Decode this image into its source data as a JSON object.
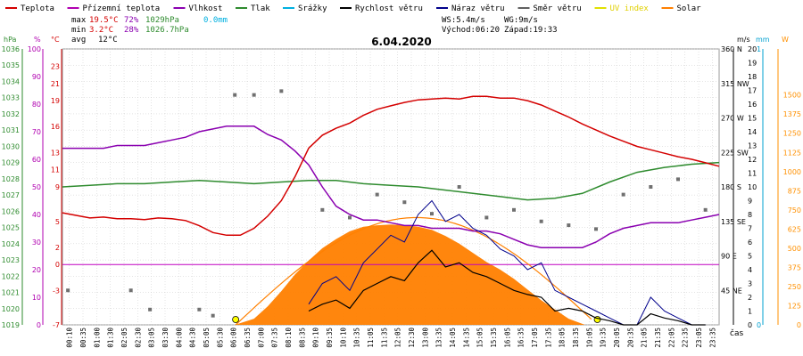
{
  "legend": [
    {
      "label": "Teplota",
      "color": "#d40000"
    },
    {
      "label": "Přízemní teplota",
      "color": "#b000b0"
    },
    {
      "label": "Vlhkost",
      "color": "#8a00b0"
    },
    {
      "label": "Tlak",
      "color": "#2e8b2e"
    },
    {
      "label": "Srážky",
      "color": "#00b0e0"
    },
    {
      "label": "Rychlost větru",
      "color": "#000000"
    },
    {
      "label": "Náraz větru",
      "color": "#00008b"
    },
    {
      "label": "Směr větru",
      "color": "#606060"
    },
    {
      "label": "UV index",
      "color": "#e0e000"
    },
    {
      "label": "Solar",
      "color": "#ff8000"
    }
  ],
  "stats": {
    "max": {
      "label": "max",
      "temp": "19.5°C",
      "hum": "72%",
      "press": "1029hPa",
      "rain": "0.0mm"
    },
    "min": {
      "label": "min",
      "temp": "3.2°C",
      "hum": "28%",
      "press": "1026.7hPa"
    },
    "avg": {
      "label": "avg",
      "temp": "12°C"
    }
  },
  "wind_info": {
    "ws": "WS:5.4m/s",
    "wg": "WG:9m/s",
    "sunrise": "Východ:06:20",
    "sunset": "Západ:19:33"
  },
  "date": "6.04.2020",
  "axis_headers": {
    "left": [
      "hPa",
      "%",
      "°C"
    ],
    "right": [
      "m/s",
      "mm",
      "W"
    ]
  },
  "x_label": "čas",
  "colors": {
    "temperature": "#d40000",
    "humidity": "#8a00b0",
    "pressure": "#2e8b2e",
    "wind_speed": "#000000",
    "wind_gust": "#00008b",
    "wind_dir": "#707070",
    "solar": "#ff8000",
    "ground_zero": "#c000c0",
    "pressure_axis": "#2e8b2e",
    "humidity_axis": "#b000b0",
    "temp_axis": "#d40000",
    "rain_axis": "#00a0d0",
    "solar_axis": "#ff9000",
    "grid": "#c8c8c8"
  },
  "chart_data": {
    "type": "line",
    "title": "6.04.2020",
    "x_ticks": [
      "00:10",
      "00:35",
      "01:00",
      "01:30",
      "02:05",
      "02:30",
      "03:05",
      "03:30",
      "04:00",
      "04:30",
      "05:05",
      "05:30",
      "06:00",
      "06:35",
      "07:00",
      "07:35",
      "08:10",
      "08:35",
      "09:10",
      "09:35",
      "10:10",
      "10:35",
      "11:05",
      "11:35",
      "12:05",
      "12:30",
      "13:00",
      "13:35",
      "14:05",
      "14:35",
      "15:05",
      "15:35",
      "16:05",
      "16:35",
      "17:05",
      "17:35",
      "18:05",
      "18:35",
      "19:05",
      "19:35",
      "20:05",
      "20:35",
      "21:05",
      "21:35",
      "22:05",
      "22:35",
      "23:05",
      "23:35"
    ],
    "axes": {
      "pressure_hpa": {
        "ticks": [
          "1019",
          "1020",
          "1021",
          "1022",
          "1023",
          "1024",
          "1025",
          "1026",
          "1027",
          "1028",
          "1029",
          "1030",
          "1031",
          "1032",
          "1033",
          "1034",
          "1035",
          "1036"
        ],
        "range": [
          1019,
          1036
        ]
      },
      "humidity_pct": {
        "ticks": [
          "0",
          "10",
          "20",
          "30",
          "40",
          "50",
          "60",
          "70",
          "80",
          "90",
          "100"
        ],
        "range": [
          0,
          100
        ]
      },
      "temp_c": {
        "ticks": [
          "-7",
          "-3",
          "0",
          "2",
          "5",
          "9",
          "11",
          "13",
          "16",
          "19",
          "21",
          "23"
        ],
        "range": [
          -7,
          25
        ]
      },
      "wind_dir": {
        "ticks": [
          "360 N",
          "315 NW",
          "270 W",
          "225 SW",
          "180 S",
          "135 SE",
          "90 E",
          "45 NE"
        ],
        "range": [
          0,
          360
        ]
      },
      "wind_ms": {
        "ticks": [
          "0",
          "1",
          "2",
          "3",
          "4",
          "5",
          "6",
          "7",
          "8",
          "9",
          "10",
          "11",
          "12",
          "13",
          "14",
          "15",
          "16",
          "17",
          "18",
          "19",
          "20"
        ],
        "range": [
          0,
          20
        ]
      },
      "rain_mm": {
        "ticks": [
          "0",
          "1"
        ],
        "range": [
          0,
          1
        ]
      },
      "solar_w": {
        "ticks": [
          "0",
          "125",
          "250",
          "375",
          "500",
          "625",
          "750",
          "875",
          "1000",
          "1125",
          "1250",
          "1375",
          "1500"
        ],
        "range": [
          0,
          1800
        ]
      }
    },
    "series": [
      {
        "name": "Teplota",
        "unit": "°C",
        "x": [
          0,
          0.5,
          1,
          1.5,
          2,
          2.5,
          3,
          3.5,
          4,
          4.5,
          5,
          5.5,
          6,
          6.5,
          7,
          7.5,
          8,
          8.5,
          9,
          9.5,
          10,
          10.5,
          11,
          11.5,
          12,
          12.5,
          13,
          13.5,
          14,
          14.5,
          15,
          15.5,
          16,
          16.5,
          17,
          17.5,
          18,
          18.5,
          19,
          19.5,
          20,
          20.5,
          21,
          21.5,
          22,
          22.5,
          23,
          23.5,
          24
        ],
        "values": [
          6.0,
          5.7,
          5.4,
          5.5,
          5.3,
          5.3,
          5.2,
          5.4,
          5.3,
          5.1,
          4.5,
          3.7,
          3.4,
          3.4,
          4.2,
          5.6,
          7.4,
          10.2,
          13.5,
          15.0,
          15.8,
          16.4,
          17.3,
          18.0,
          18.4,
          18.8,
          19.1,
          19.2,
          19.3,
          19.2,
          19.5,
          19.5,
          19.3,
          19.3,
          19.0,
          18.5,
          17.8,
          17.1,
          16.3,
          15.6,
          14.9,
          14.3,
          13.7,
          13.3,
          12.9,
          12.5,
          12.2,
          11.8,
          11.4
        ]
      },
      {
        "name": "Vlhkost",
        "unit": "%",
        "x": [
          0,
          0.5,
          1,
          1.5,
          2,
          2.5,
          3,
          3.5,
          4,
          4.5,
          5,
          5.5,
          6,
          6.5,
          7,
          7.5,
          8,
          8.5,
          9,
          9.5,
          10,
          10.5,
          11,
          11.5,
          12,
          12.5,
          13,
          13.5,
          14,
          14.5,
          15,
          15.5,
          16,
          16.5,
          17,
          17.5,
          18,
          18.5,
          19,
          19.5,
          20,
          20.5,
          21,
          21.5,
          22,
          22.5,
          23,
          23.5,
          24
        ],
        "values": [
          64,
          64,
          64,
          64,
          65,
          65,
          65,
          66,
          67,
          68,
          70,
          71,
          72,
          72,
          72,
          69,
          67,
          63,
          58,
          50,
          43,
          40,
          38,
          38,
          37,
          36,
          36,
          35,
          35,
          35,
          34,
          34,
          33,
          31,
          29,
          28,
          28,
          28,
          28,
          30,
          33,
          35,
          36,
          37,
          37,
          37,
          38,
          39,
          40
        ]
      },
      {
        "name": "Tlak",
        "unit": "hPa",
        "x": [
          0,
          1,
          2,
          3,
          4,
          5,
          6,
          7,
          8,
          9,
          10,
          11,
          12,
          13,
          14,
          15,
          16,
          17,
          18,
          19,
          20,
          21,
          22,
          23,
          24
        ],
        "values": [
          1027.5,
          1027.6,
          1027.7,
          1027.7,
          1027.8,
          1027.9,
          1027.8,
          1027.7,
          1027.8,
          1027.9,
          1027.9,
          1027.7,
          1027.6,
          1027.5,
          1027.3,
          1027.1,
          1026.9,
          1026.7,
          1026.8,
          1027.1,
          1027.8,
          1028.4,
          1028.7,
          1028.9,
          1029.0
        ]
      },
      {
        "name": "Rychlost větru",
        "unit": "m/s",
        "x": [
          9,
          9.5,
          10,
          10.5,
          11,
          11.5,
          12,
          12.5,
          13,
          13.5,
          14,
          14.5,
          15,
          15.5,
          16,
          16.5,
          17,
          17.5,
          18,
          18.5,
          19,
          19.5,
          20,
          20.5,
          21,
          21.5,
          22,
          22.5,
          23,
          23.5
        ],
        "values": [
          1.0,
          1.5,
          1.8,
          1.2,
          2.5,
          3.0,
          3.5,
          3.2,
          4.5,
          5.4,
          4.2,
          4.5,
          3.8,
          3.5,
          3.0,
          2.5,
          2.2,
          2.0,
          1.0,
          1.2,
          1.0,
          0.5,
          0.3,
          0,
          0,
          0.8,
          0.5,
          0.3,
          0,
          0
        ]
      },
      {
        "name": "Náraz větru",
        "unit": "m/s",
        "x": [
          9,
          9.5,
          10,
          10.5,
          11,
          11.5,
          12,
          12.5,
          13,
          13.5,
          14,
          14.5,
          15,
          15.5,
          16,
          16.5,
          17,
          17.5,
          18,
          18.5,
          19,
          19.5,
          20,
          20.5,
          21,
          21.5,
          22,
          22.5,
          23,
          23.5
        ],
        "values": [
          1.5,
          3.0,
          3.5,
          2.5,
          4.5,
          5.5,
          6.5,
          6.0,
          8.0,
          9.0,
          7.5,
          8.0,
          7.0,
          6.5,
          5.5,
          5.0,
          4.0,
          4.5,
          2.5,
          2.0,
          1.5,
          1.0,
          0.5,
          0,
          0,
          2.0,
          1.0,
          0.5,
          0,
          0
        ]
      },
      {
        "name": "Směr větru",
        "unit": "°",
        "x": [
          0.2,
          2.5,
          3.2,
          5.0,
          5.5,
          6.3,
          7.0,
          8.0,
          9.5,
          10.5,
          11.5,
          12.5,
          13.5,
          14.5,
          15.5,
          16.5,
          17.5,
          18.5,
          19.5,
          20.5,
          21.5,
          22.5,
          23.5
        ],
        "values": [
          45,
          45,
          20,
          20,
          12,
          300,
          300,
          305,
          150,
          140,
          170,
          160,
          145,
          180,
          140,
          150,
          135,
          130,
          125,
          170,
          180,
          190,
          150
        ]
      },
      {
        "name": "Solar",
        "unit": "W",
        "x": [
          6.3,
          7,
          7.5,
          8,
          8.5,
          9,
          9.5,
          10,
          10.5,
          11,
          11.5,
          12,
          12.5,
          13,
          13.5,
          14,
          14.5,
          15,
          15.5,
          16,
          16.5,
          17,
          17.5,
          18,
          18.5,
          19.1
        ],
        "values": [
          0,
          40,
          120,
          220,
          330,
          420,
          500,
          560,
          610,
          640,
          650,
          655,
          650,
          640,
          620,
          580,
          530,
          470,
          410,
          360,
          300,
          230,
          160,
          100,
          40,
          0
        ]
      }
    ]
  }
}
